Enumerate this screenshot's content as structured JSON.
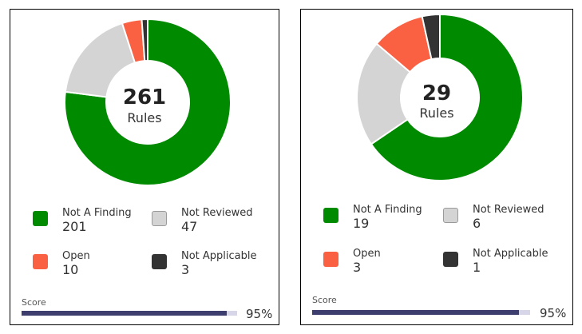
{
  "colors": {
    "not_a_finding": "#008a00",
    "not_reviewed": "#d4d4d4",
    "open": "#fa6042",
    "not_applicable": "#333333"
  },
  "chart_data": [
    {
      "type": "pie",
      "donut": true,
      "center_value": "261",
      "center_label": "Rules",
      "categories": [
        "Not A Finding",
        "Not Reviewed",
        "Open",
        "Not Applicable"
      ],
      "values": [
        201,
        47,
        10,
        3
      ],
      "score_label": "Score",
      "score_value": 95,
      "score_text": "95%"
    },
    {
      "type": "pie",
      "donut": true,
      "center_value": "29",
      "center_label": "Rules",
      "categories": [
        "Not A Finding",
        "Not Reviewed",
        "Open",
        "Not Applicable"
      ],
      "values": [
        19,
        6,
        3,
        1
      ],
      "score_label": "Score",
      "score_value": 95,
      "score_text": "95%"
    }
  ]
}
